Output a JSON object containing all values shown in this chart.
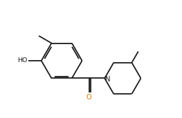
{
  "background_color": "#ffffff",
  "line_color": "#1a1a1a",
  "label_color_o": "#cc7700",
  "label_color_n": "#1a1a1a",
  "label_color_ho": "#1a1a1a",
  "figsize": [
    2.63,
    1.71
  ],
  "dpi": 100,
  "xlim": [
    0,
    10.5
  ],
  "ylim": [
    0.5,
    7.0
  ]
}
